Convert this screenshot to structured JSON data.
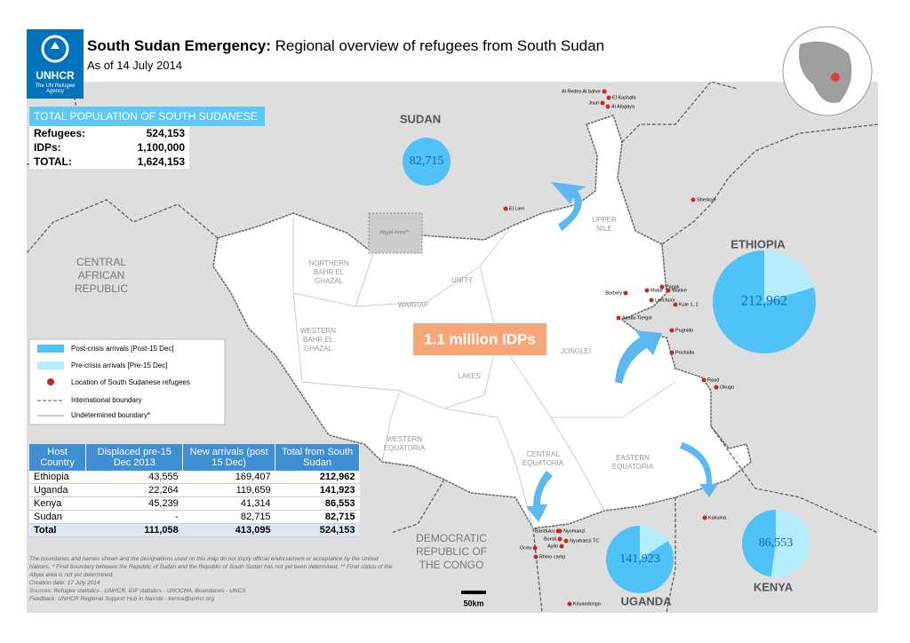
{
  "header": {
    "logo": "UNHCR",
    "logo_sub": "The UN Refugee Agency",
    "title_bold": "South Sudan Emergency:",
    "title": "Regional overview of refugees from South Sudan",
    "subtitle": "As of 14 July 2014"
  },
  "total_population": {
    "heading": "TOTAL POPULATION OF SOUTH SUDANESE",
    "rows": [
      [
        "Refugees:",
        "524,153"
      ],
      [
        "IDPs:",
        "1,100,000"
      ],
      [
        "TOTAL:",
        "1,624,153"
      ]
    ]
  },
  "countries": [
    {
      "lines": [
        "SUDAN"
      ]
    },
    {
      "lines": [
        "ETHIOPIA"
      ]
    },
    {
      "lines": [
        "KENYA"
      ]
    },
    {
      "lines": [
        "UGANDA"
      ]
    },
    {
      "lines": [
        "CENTRAL",
        "AFRICAN",
        "REPUBLIC"
      ]
    },
    {
      "lines": [
        "DEMOCRATIC",
        "REPUBLIC OF",
        "THE CONGO"
      ]
    }
  ],
  "regions": [
    {
      "lines": [
        "UPPER",
        "NILE"
      ]
    },
    {
      "lines": [
        "NORTHERN",
        "BAHR EL",
        "GHAZAL"
      ]
    },
    {
      "lines": [
        "UNITY"
      ]
    },
    {
      "lines": [
        "WARRAP"
      ]
    },
    {
      "lines": [
        "WESTERN",
        "BAHR EL",
        "GHAZAL"
      ]
    },
    {
      "lines": [
        "JONGLEI"
      ]
    },
    {
      "lines": [
        "LAKES"
      ]
    },
    {
      "lines": [
        "WESTERN",
        "EQUATORIA"
      ]
    },
    {
      "lines": [
        "CENTRAL",
        "EQUATORIA"
      ]
    },
    {
      "lines": [
        "EASTERN",
        "EQUATORIA"
      ]
    },
    {
      "lines": [
        "Abyei Area**"
      ]
    }
  ],
  "idps": "1.1 million IDPs",
  "camps": [
    "Al Redes Al baher",
    "El Kashafa",
    "Jouri",
    "Al Alagaya",
    "El Lieri",
    "Sherkole",
    "Burbiey",
    "Matar",
    "Pagak",
    "Wanke",
    "Leitchuor",
    "Kule 1, 2",
    "Akobo Tiergol",
    "Pugnido",
    "Pochalla",
    "Raad",
    "Okugo",
    "Kakuma",
    "Nyumanzi",
    "Baratuku",
    "Boroli",
    "Ayilo",
    "Nyumanzi TC",
    "Ocea",
    "Rhino camp",
    "Kiryandongo"
  ],
  "legend": [
    "Post-crisis arrivals [Post-15 Dec]",
    "Pre-crisis arrivals [Pre-15 Dec]",
    "Location of South Sudanese refugees",
    "International boundary",
    "Undetermined boundary*"
  ],
  "table": {
    "header": [
      "Host Country",
      "Displaced pre-15 Dec 2013",
      "New arrivals (post 15 Dec)",
      "Total from South Sudan"
    ],
    "rows": [
      [
        "Ethiopia",
        "43,555",
        "169,407",
        "212,962"
      ],
      [
        "Uganda",
        "22,264",
        "119,659",
        "141,923"
      ],
      [
        "Kenya",
        "45,239",
        "41,314",
        "86,553"
      ],
      [
        "Sudan",
        "-",
        "82,715",
        "82,715"
      ],
      [
        "Total",
        "111,058",
        "413,095",
        "524,153"
      ]
    ]
  },
  "footnotes": [
    "The boundaries and names shown and the designations used on this map do not imply official endorsement or acceptance by the United Nations. * Final boundary between the Republic of Sudan and the Republic of South Sudan has not yet been determined. ** Final status of the Abyei area is not yet determined.",
    "Creation date: 17 July 2014",
    "Sources: Refugee statistics - UNHCR, IDP statistics - UNOCHA, Boundaries - UNCS",
    "Feedback: UNHCR Regional Support Hub in Nairobi - kenna@unhcr.org"
  ],
  "scale": "50km"
}
